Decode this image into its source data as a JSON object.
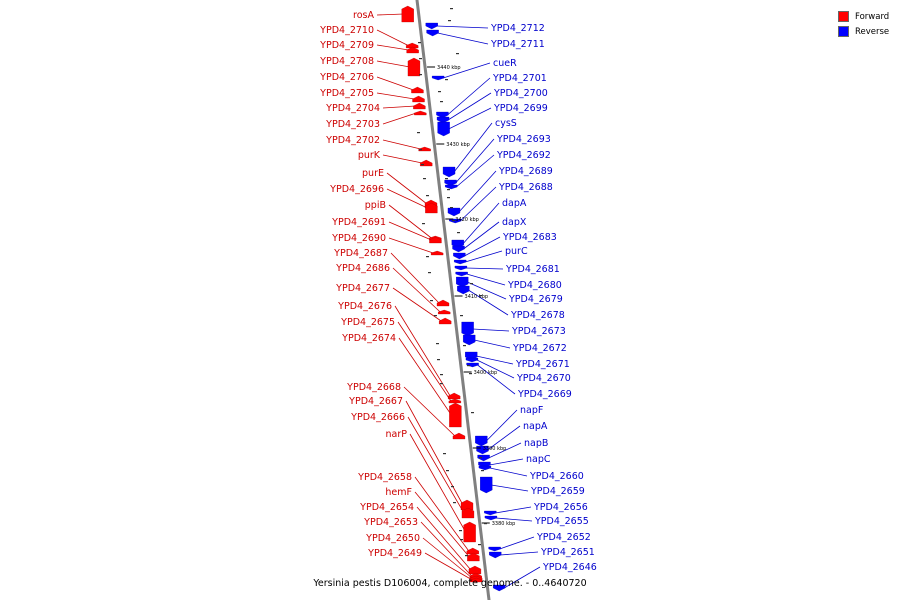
{
  "caption": "Yersinia pestis D106004, complete genome. - 0..4640720",
  "legend": [
    {
      "label": "Forward",
      "color": "#ff0000"
    },
    {
      "label": "Reverse",
      "color": "#0000ff"
    }
  ],
  "colors": {
    "forward": "#ff0000",
    "reverse": "#0000ff",
    "backbone": "#808080",
    "label_forward": "#cc0000",
    "label_reverse": "#0000cc"
  },
  "scale_labels": [
    "3440 kbp",
    "3430 kbp",
    "3420 kbp",
    "3410 kbp",
    "3400 kbp",
    "3390 kbp",
    "3380 kbp"
  ],
  "forward_genes": [
    "rosA",
    "YPD4_2710",
    "YPD4_2709",
    "YPD4_2708",
    "YPD4_2706",
    "YPD4_2705",
    "YPD4_2704",
    "YPD4_2703",
    "YPD4_2702",
    "purK",
    "purE",
    "YPD4_2696",
    "ppiB",
    "YPD4_2691",
    "YPD4_2690",
    "YPD4_2687",
    "YPD4_2686",
    "YPD4_2677",
    "YPD4_2676",
    "YPD4_2675",
    "YPD4_2674",
    "YPD4_2668",
    "YPD4_2667",
    "YPD4_2666",
    "narP",
    "YPD4_2658",
    "hemF",
    "YPD4_2654",
    "YPD4_2653",
    "YPD4_2650",
    "YPD4_2649"
  ],
  "reverse_genes": [
    "YPD4_2712",
    "YPD4_2711",
    "cueR",
    "YPD4_2701",
    "YPD4_2700",
    "YPD4_2699",
    "cysS",
    "YPD4_2693",
    "YPD4_2692",
    "YPD4_2689",
    "YPD4_2688",
    "dapA",
    "dapX",
    "YPD4_2683",
    "purC",
    "YPD4_2681",
    "YPD4_2680",
    "YPD4_2679",
    "YPD4_2678",
    "YPD4_2673",
    "YPD4_2672",
    "YPD4_2671",
    "YPD4_2670",
    "YPD4_2669",
    "napF",
    "napA",
    "napB",
    "napC",
    "YPD4_2660",
    "YPD4_2659",
    "YPD4_2656",
    "YPD4_2655",
    "YPD4_2652",
    "YPD4_2651",
    "YPD4_2646"
  ]
}
